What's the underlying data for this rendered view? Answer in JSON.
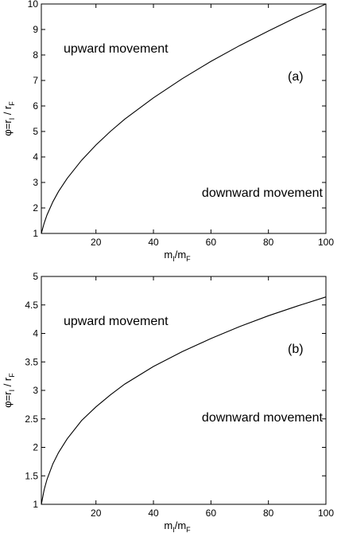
{
  "chart_data": [
    {
      "type": "line",
      "panel_label": "(a)",
      "xlabel": {
        "main": "m",
        "sub1": "I",
        "sep": "/m",
        "sub2": "F"
      },
      "ylabel": {
        "main": "φ=r",
        "sub1": "I",
        "sep": " / r",
        "sub2": "F"
      },
      "xlim": [
        1,
        100
      ],
      "ylim": [
        1,
        10
      ],
      "xticks": [
        20,
        40,
        60,
        80,
        100
      ],
      "yticks": [
        1,
        2,
        3,
        4,
        5,
        6,
        7,
        8,
        9,
        10
      ],
      "grid": false,
      "annotations": {
        "upper": "upward movement",
        "lower": "downward movement"
      },
      "series": [
        {
          "x": [
            1,
            2,
            3,
            5,
            7,
            10,
            15,
            20,
            25,
            30,
            40,
            50,
            60,
            70,
            80,
            90,
            100
          ],
          "values": [
            1.0,
            1.41,
            1.73,
            2.24,
            2.65,
            3.16,
            3.87,
            4.47,
            5.0,
            5.48,
            6.32,
            7.07,
            7.75,
            8.37,
            8.94,
            9.49,
            10.0
          ]
        }
      ]
    },
    {
      "type": "line",
      "panel_label": "(b)",
      "xlabel": {
        "main": "m",
        "sub1": "I",
        "sep": "/m",
        "sub2": "F"
      },
      "ylabel": {
        "main": "φ=r",
        "sub1": "I",
        "sep": " / r",
        "sub2": "F"
      },
      "xlim": [
        1,
        100
      ],
      "ylim": [
        1,
        5
      ],
      "xticks": [
        20,
        40,
        60,
        80,
        100
      ],
      "yticks": [
        1,
        1.5,
        2,
        2.5,
        3,
        3.5,
        4,
        4.5,
        5
      ],
      "grid": false,
      "annotations": {
        "upper": "upward movement",
        "lower": "downward movement"
      },
      "series": [
        {
          "x": [
            1,
            2,
            3,
            5,
            7,
            10,
            15,
            20,
            25,
            30,
            40,
            50,
            60,
            70,
            80,
            90,
            100
          ],
          "values": [
            1.0,
            1.26,
            1.44,
            1.71,
            1.91,
            2.15,
            2.47,
            2.71,
            2.92,
            3.11,
            3.42,
            3.68,
            3.91,
            4.12,
            4.31,
            4.48,
            4.64
          ]
        }
      ]
    }
  ]
}
